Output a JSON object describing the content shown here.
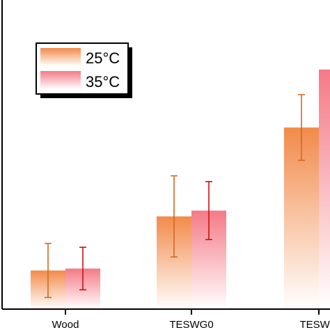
{
  "chart_data": {
    "type": "bar",
    "categories": [
      "Wood",
      "TESWG0",
      "TESWG"
    ],
    "series": [
      {
        "name": "25°C",
        "values": [
          1.0,
          2.4,
          4.7
        ],
        "error": [
          0.7,
          1.05,
          0.85
        ],
        "color_top": "#f28a4a",
        "error_color": "#d2691e"
      },
      {
        "name": "35°C",
        "values": [
          1.05,
          2.55,
          6.2
        ],
        "error": [
          0.55,
          0.75,
          null
        ],
        "color_top": "#f47a86",
        "error_color": "#cc1111"
      }
    ],
    "ylim": [
      0,
      8
    ],
    "grid": false,
    "legend_position": "top-left",
    "title": "",
    "xlabel": "",
    "ylabel": ""
  }
}
